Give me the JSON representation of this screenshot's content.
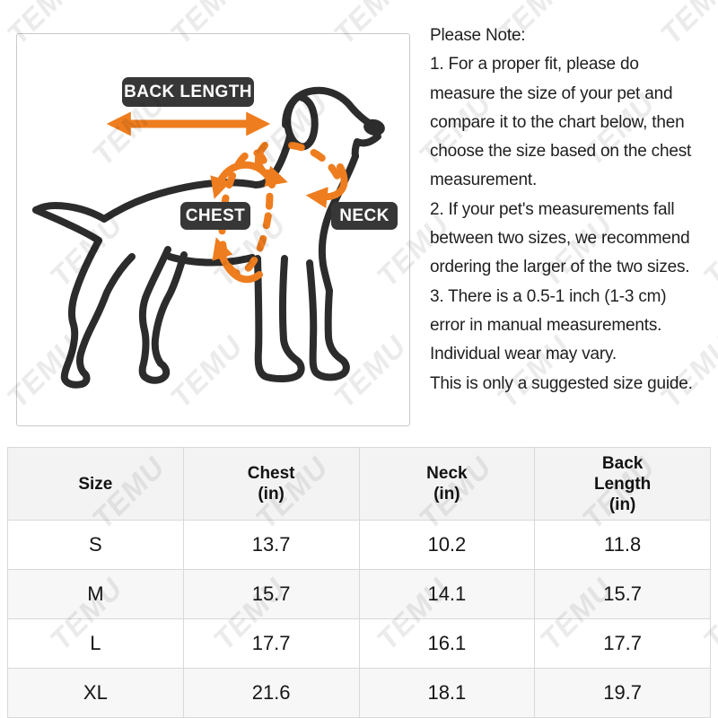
{
  "watermark": {
    "text": "TEMU"
  },
  "diagram": {
    "back_length_label": "BACK LENGTH",
    "chest_label": "CHEST",
    "neck_label": "NECK"
  },
  "note": {
    "lines": [
      "Please Note:",
      "1. For a proper fit, please do",
      "measure the size of your pet and",
      "compare it to the chart below, then",
      "choose the size based on the chest",
      "measurement.",
      "2. If your pet's measurements fall",
      "between two sizes, we recommend",
      "ordering the larger of the two sizes.",
      "3. There is a 0.5-1 inch (1-3 cm)",
      "error in manual measurements.",
      "Individual wear may vary.",
      "This is only a suggested size guide."
    ]
  },
  "size_table": {
    "headers": [
      "Size",
      "Chest\n(in)",
      "Neck\n(in)",
      "Back\nLength\n(in)"
    ],
    "rows": [
      {
        "size": "S",
        "chest": "13.7",
        "neck": "10.2",
        "back_length": "11.8"
      },
      {
        "size": "M",
        "chest": "15.7",
        "neck": "14.1",
        "back_length": "15.7"
      },
      {
        "size": "L",
        "chest": "17.7",
        "neck": "16.1",
        "back_length": "17.7"
      },
      {
        "size": "XL",
        "chest": "21.6",
        "neck": "18.1",
        "back_length": "19.7"
      }
    ]
  },
  "colors": {
    "accent_orange": "#ee7d1f",
    "badge_dark": "#373737",
    "dog_stroke": "#2c2c2c"
  }
}
